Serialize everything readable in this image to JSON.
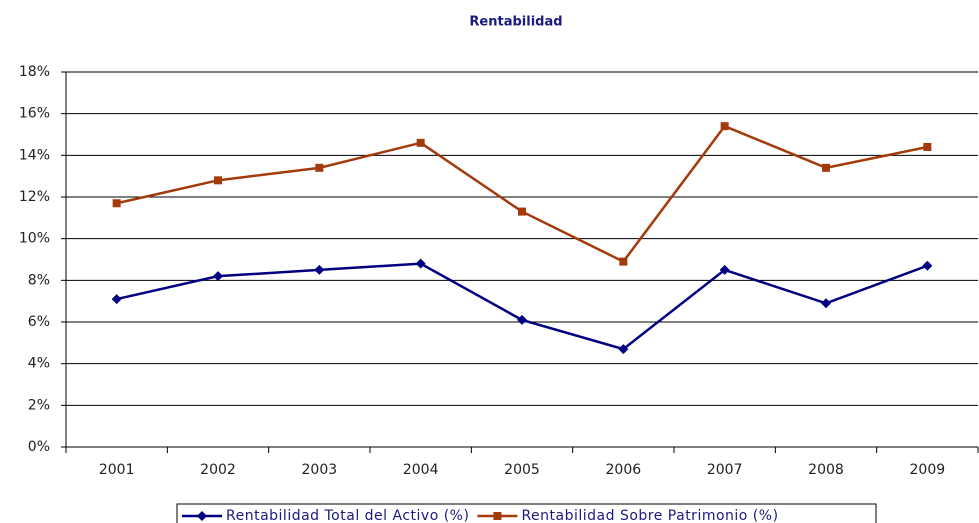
{
  "chart_data": {
    "type": "line",
    "title": "Rentabilidad",
    "categories": [
      "2001",
      "2002",
      "2003",
      "2004",
      "2005",
      "2006",
      "2007",
      "2008",
      "2009"
    ],
    "series": [
      {
        "name": "Rentabilidad Total del Activo (%)",
        "color": "#000080",
        "marker": "diamond",
        "values": [
          7.1,
          8.2,
          8.5,
          8.8,
          6.1,
          4.7,
          8.5,
          6.9,
          8.7
        ]
      },
      {
        "name": "Rentabilidad Sobre Patrimonio (%)",
        "color": "#a33a0c",
        "marker": "square",
        "values": [
          11.7,
          12.8,
          13.4,
          14.6,
          11.3,
          8.9,
          15.4,
          13.4,
          14.4
        ]
      }
    ],
    "ylim": [
      0,
      18
    ],
    "yticks": [
      {
        "value": 0,
        "label": "0%"
      },
      {
        "value": 2,
        "label": "2%"
      },
      {
        "value": 4,
        "label": "4%"
      },
      {
        "value": 6,
        "label": "6%"
      },
      {
        "value": 8,
        "label": "8%"
      },
      {
        "value": 10,
        "label": "10%"
      },
      {
        "value": 12,
        "label": "12%"
      },
      {
        "value": 14,
        "label": "14%"
      },
      {
        "value": 16,
        "label": "16%"
      },
      {
        "value": 18,
        "label": "18%"
      }
    ],
    "grid": true,
    "legend": "bottom"
  }
}
